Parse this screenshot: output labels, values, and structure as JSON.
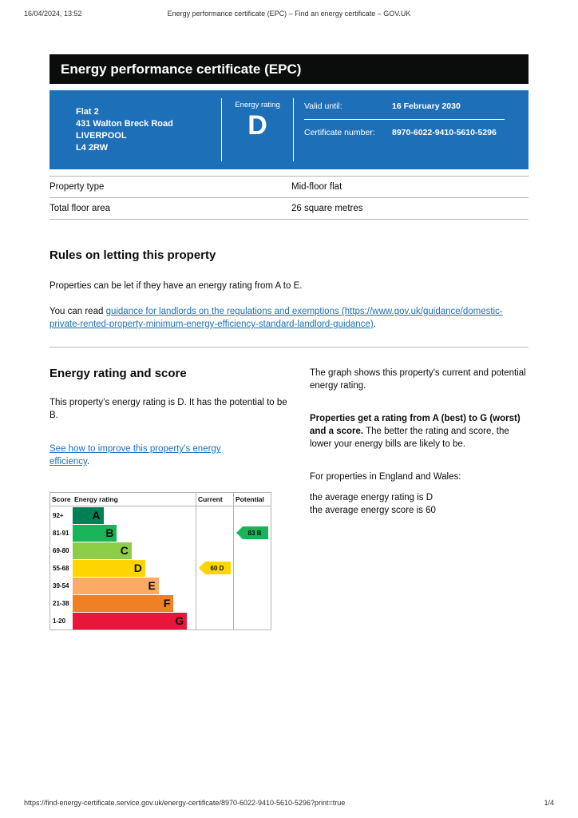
{
  "page": {
    "print_timestamp": "16/04/2024, 13:52",
    "print_title": "Energy performance certificate (EPC) – Find an energy certificate – GOV.UK",
    "footer_url": "https://find-energy-certificate.service.gov.uk/energy-certificate/8970-6022-9410-5610-5296?print=true",
    "page_number": "1/4"
  },
  "banner": {
    "title": "Energy performance certificate (EPC)"
  },
  "summary": {
    "address_lines": [
      "Flat 2",
      "431 Walton Breck Road",
      "LIVERPOOL",
      "L4 2RW"
    ],
    "energy_rating_label": "Energy rating",
    "energy_rating": "D",
    "valid_until_label": "Valid until:",
    "valid_until": "16 February 2030",
    "certificate_number_label": "Certificate number:",
    "certificate_number": "8970-6022-9410-5610-5296"
  },
  "property_table": {
    "rows": [
      {
        "label": "Property type",
        "value": "Mid-floor flat"
      },
      {
        "label": "Total floor area",
        "value": "26 square metres"
      }
    ]
  },
  "letting": {
    "heading": "Rules on letting this property",
    "paragraph1": "Properties can be let if they have an energy rating from A to E.",
    "paragraph2_prefix": "You can read ",
    "link_text": "guidance for landlords on the regulations and exemptions (https://www.gov.uk/guidance/domestic-private-rented-property-minimum-energy-efficiency-standard-landlord-guidance)",
    "paragraph2_suffix": "."
  },
  "rating_section": {
    "heading": "Energy rating and score",
    "intro": "This property’s energy rating is D. It has the potential to be B.",
    "improve_link": "See how to improve this property’s energy efficiency",
    "improve_suffix": ".",
    "graph_intro": "The graph shows this property's current and potential energy rating.",
    "explain_bold": "Properties get a rating from A (best) to G (worst) and a score.",
    "explain_rest": " The better the rating and score, the lower your energy bills are likely to be.",
    "for_properties": "For properties in England and Wales:",
    "average_rating": "the average energy rating is D",
    "average_score": "the average energy score is 60"
  },
  "chart_data": {
    "type": "bar",
    "title": "Energy rating and score chart",
    "headers": {
      "score": "Score",
      "rating": "Energy rating",
      "current": "Current",
      "potential": "Potential"
    },
    "bands": [
      {
        "score": "92+",
        "letter": "A",
        "color": "#008054",
        "width_pct": 25
      },
      {
        "score": "81-91",
        "letter": "B",
        "color": "#19b459",
        "width_pct": 36
      },
      {
        "score": "69-80",
        "letter": "C",
        "color": "#8dce46",
        "width_pct": 48
      },
      {
        "score": "55-68",
        "letter": "D",
        "color": "#ffd500",
        "width_pct": 59
      },
      {
        "score": "39-54",
        "letter": "E",
        "color": "#fcaa65",
        "width_pct": 70
      },
      {
        "score": "21-38",
        "letter": "F",
        "color": "#ef8023",
        "width_pct": 82
      },
      {
        "score": "1-20",
        "letter": "G",
        "color": "#e9153b",
        "width_pct": 93
      }
    ],
    "current": {
      "score": 60,
      "letter": "D",
      "band_index": 3,
      "color": "#ffd500"
    },
    "potential": {
      "score": 83,
      "letter": "B",
      "band_index": 1,
      "color": "#19b459"
    }
  },
  "colors": {
    "govuk_blue": "#1d70b8",
    "banner_black": "#0b0c0c",
    "link_blue": "#1d70b8",
    "border_grey": "#b1b4b6"
  }
}
